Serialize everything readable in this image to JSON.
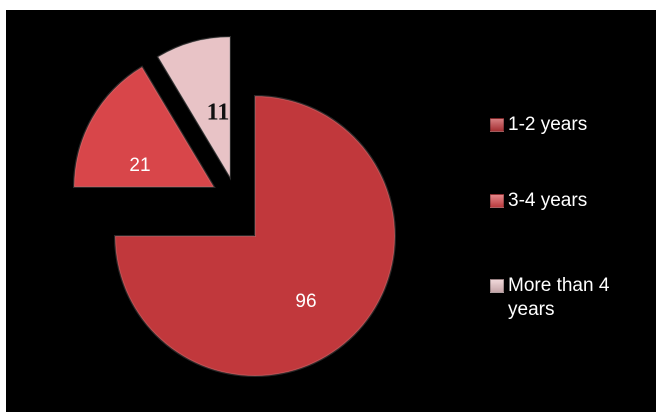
{
  "chart_data": {
    "type": "pie",
    "style": "exploded-3d",
    "categories": [
      "1-2 years",
      "3-4 years",
      "More than 4 years"
    ],
    "values": [
      96,
      21,
      11
    ],
    "data_labels": [
      "96",
      "21",
      "11"
    ],
    "colors": [
      "#c1383c",
      "#d8464a",
      "#e8c3c6"
    ],
    "legend_position": "right",
    "title": ""
  },
  "legend": {
    "items": [
      {
        "label": "1-2 years",
        "color": "#c1383c"
      },
      {
        "label": "3-4 years",
        "color": "#d8464a"
      },
      {
        "label": "More than 4 years",
        "color": "#e8c3c6"
      }
    ]
  }
}
